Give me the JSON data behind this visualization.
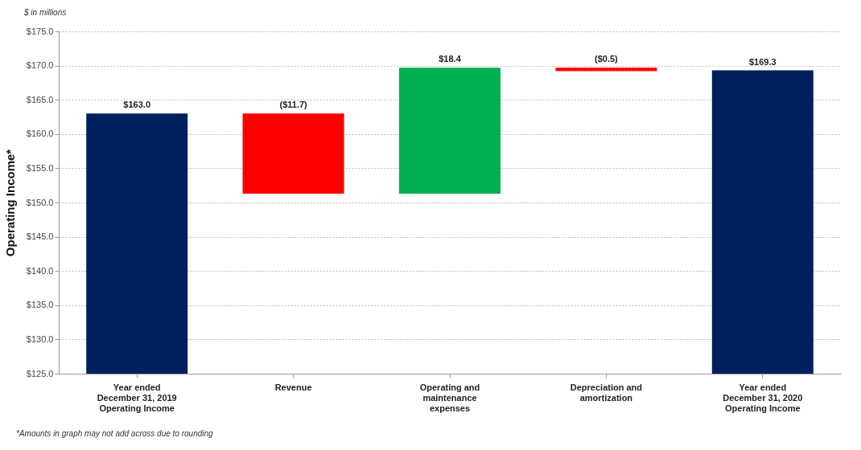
{
  "chart_data": {
    "type": "bar",
    "subtitle": "$ in millions",
    "ylabel": "Operating Income*",
    "categories": [
      "Year ended December 31, 2019 Operating Income",
      "Revenue",
      "Operating and maintenance expenses",
      "Depreciation and amortization",
      "Year ended December 31, 2020 Operating Income"
    ],
    "values": [
      163.0,
      -11.7,
      18.4,
      -0.5,
      169.3
    ],
    "base": [
      null,
      163.0,
      151.3,
      169.7,
      null
    ],
    "colors": [
      "#002060",
      "#ff0000",
      "#00b050",
      "#ff0000",
      "#002060"
    ],
    "value_labels": [
      "$163.0",
      "($11.7)",
      "$18.4",
      "($0.5)",
      "$169.3"
    ],
    "ylim": [
      125,
      175
    ],
    "yticks": [
      {
        "value": 125,
        "label": "$125.0"
      },
      {
        "value": 130,
        "label": "$130.0"
      },
      {
        "value": 135,
        "label": "$135.0"
      },
      {
        "value": 140,
        "label": "$140.0"
      },
      {
        "value": 145,
        "label": "$145.0"
      },
      {
        "value": 150,
        "label": "$150.0"
      },
      {
        "value": 155,
        "label": "$155.0"
      },
      {
        "value": 160,
        "label": "$160.0"
      },
      {
        "value": 165,
        "label": "$165.0"
      },
      {
        "value": 170,
        "label": "$170.0"
      },
      {
        "value": 175,
        "label": "$175.0"
      }
    ],
    "grid": "y",
    "annotations": [
      "*Amounts in graph may not add across due to rounding"
    ]
  }
}
